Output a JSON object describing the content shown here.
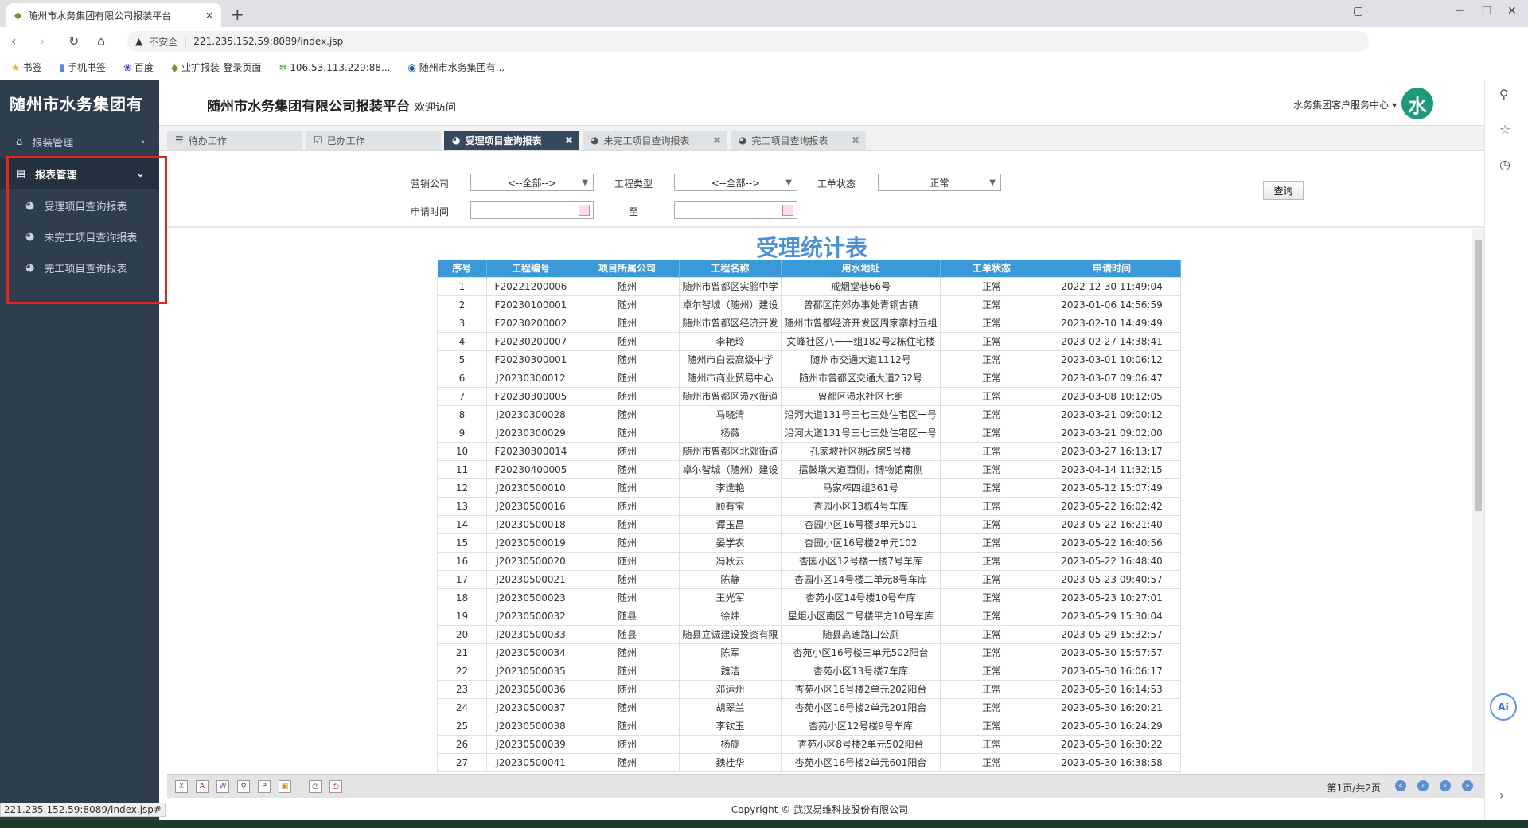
{
  "browser": {
    "tab_title": "随州市水务集团有限公司报装平台",
    "insecure_label": "不安全",
    "url": "221.235.152.59:8089/index.jsp",
    "bookmarks": [
      "书签",
      "手机书签",
      "百度",
      "业扩报装-登录页面",
      "106.53.113.229:88...",
      "随州市水务集团有..."
    ],
    "status_url": "221.235.152.59:8089/index.jsp#"
  },
  "sidebar": {
    "title": "随州市水务集团有",
    "items": [
      {
        "label": "报装管理",
        "icon": "home-icon"
      },
      {
        "label": "报表管理",
        "icon": "document-icon",
        "expanded": true
      }
    ],
    "subitems": [
      "受理项目查询报表",
      "未完工项目查询报表",
      "完工项目查询报表"
    ],
    "highlight_color": "#e8231c"
  },
  "header": {
    "title": "随州市水务集团有限公司报装平台",
    "welcome": "欢迎访问",
    "user": "水务集团客户服务中心",
    "logo_char": "水",
    "logo_color": "#1c9a7a"
  },
  "tabs": [
    {
      "label": "待办工作",
      "icon": "list-icon"
    },
    {
      "label": "已办工作",
      "icon": "checkbox-icon"
    },
    {
      "label": "受理项目查询报表",
      "icon": "pie-icon",
      "active": true,
      "closable": true
    },
    {
      "label": "未完工项目查询报表",
      "icon": "pie-icon",
      "closable": true
    },
    {
      "label": "完工项目查询报表",
      "icon": "pie-icon",
      "closable": true
    }
  ],
  "filters": {
    "company_label": "营销公司",
    "company_value": "<--全部-->",
    "type_label": "工程类型",
    "type_value": "<--全部-->",
    "status_label": "工单状态",
    "status_value": "正常",
    "date_label": "申请时间",
    "date_from": "",
    "to_label": "至",
    "date_to": "",
    "query_button": "查询"
  },
  "report": {
    "title": "受理统计表",
    "header_color": "#3a9ad9",
    "columns": [
      "序号",
      "工程编号",
      "项目所属公司",
      "工程名称",
      "用水地址",
      "工单状态",
      "申请时间"
    ],
    "rows": [
      [
        "1",
        "F20221200006",
        "随州",
        "随州市曾都区实验中学",
        "戒烟堂巷66号",
        "正常",
        "2022-12-30  11:49:04"
      ],
      [
        "2",
        "F20230100001",
        "随州",
        "卓尔智城（随州）建设",
        "曾都区南郊办事处青铜古镇",
        "正常",
        "2023-01-06  14:56:59"
      ],
      [
        "3",
        "F20230200002",
        "随州",
        "随州市曾都区经济开发",
        "随州市曾都经济开发区周家寨村五组",
        "正常",
        "2023-02-10  14:49:49"
      ],
      [
        "4",
        "F20230200007",
        "随州",
        "李艳玲",
        "文峰社区八一一组182号2栋住宅楼",
        "正常",
        "2023-02-27  14:38:41"
      ],
      [
        "5",
        "F20230300001",
        "随州",
        "随州市白云高级中学",
        "随州市交通大道1112号",
        "正常",
        "2023-03-01  10:06:12"
      ],
      [
        "6",
        "J20230300012",
        "随州",
        "随州市商业贸易中心",
        "随州市曾都区交通大道252号",
        "正常",
        "2023-03-07  09:06:47"
      ],
      [
        "7",
        "F20230300005",
        "随州",
        "随州市曾都区涢水街道",
        "曾都区涢水社区七组",
        "正常",
        "2023-03-08  10:12:05"
      ],
      [
        "8",
        "J20230300028",
        "随州",
        "马晓清",
        "沿河大道131号三七三处住宅区一号",
        "正常",
        "2023-03-21  09:00:12"
      ],
      [
        "9",
        "J20230300029",
        "随州",
        "杨薇",
        "沿河大道131号三七三处住宅区一号",
        "正常",
        "2023-03-21  09:02:00"
      ],
      [
        "10",
        "F20230300014",
        "随州",
        "随州市曾都区北郊街道",
        "孔家坡社区棚改房5号楼",
        "正常",
        "2023-03-27  16:13:17"
      ],
      [
        "11",
        "F20230400005",
        "随州",
        "卓尔智城（随州）建设",
        "擂鼓墩大道西侧，博物馆南侧",
        "正常",
        "2023-04-14  11:32:15"
      ],
      [
        "12",
        "J20230500010",
        "随州",
        "李选艳",
        "马家榨四组361号",
        "正常",
        "2023-05-12  15:07:49"
      ],
      [
        "13",
        "J20230500016",
        "随州",
        "顾有宝",
        "杏园小区13栋4号车库",
        "正常",
        "2023-05-22  16:02:42"
      ],
      [
        "14",
        "J20230500018",
        "随州",
        "谭玉昌",
        "杏园小区16号楼3单元501",
        "正常",
        "2023-05-22  16:21:40"
      ],
      [
        "15",
        "J20230500019",
        "随州",
        "晏学农",
        "杏园小区16号楼2单元102",
        "正常",
        "2023-05-22  16:40:56"
      ],
      [
        "16",
        "J20230500020",
        "随州",
        "冯秋云",
        "杏园小区12号楼一楼7号车库",
        "正常",
        "2023-05-22  16:48:40"
      ],
      [
        "17",
        "J20230500021",
        "随州",
        "陈静",
        "杏园小区14号楼二单元8号车库",
        "正常",
        "2023-05-23  09:40:57"
      ],
      [
        "18",
        "J20230500023",
        "随州",
        "王光军",
        "杏苑小区14号楼10号车库",
        "正常",
        "2023-05-23  10:27:01"
      ],
      [
        "19",
        "J20230500032",
        "随县",
        "徐炜",
        "星炬小区南区二号楼平方10号车库",
        "正常",
        "2023-05-29  15:30:04"
      ],
      [
        "20",
        "J20230500033",
        "随县",
        "随县立诚建设投资有限",
        "随县高速路口公厕",
        "正常",
        "2023-05-29  15:32:57"
      ],
      [
        "21",
        "J20230500034",
        "随州",
        "陈军",
        "杏苑小区16号楼三单元502阳台",
        "正常",
        "2023-05-30  15:57:57"
      ],
      [
        "22",
        "J20230500035",
        "随州",
        "魏洁",
        "杏苑小区13号楼7车库",
        "正常",
        "2023-05-30  16:06:17"
      ],
      [
        "23",
        "J20230500036",
        "随州",
        "邓运州",
        "杏苑小区16号楼2单元202阳台",
        "正常",
        "2023-05-30  16:14:53"
      ],
      [
        "24",
        "J20230500037",
        "随州",
        "胡翠兰",
        "杏苑小区16号楼2单元201阳台",
        "正常",
        "2023-05-30  16:20:21"
      ],
      [
        "25",
        "J20230500038",
        "随州",
        "李钦玉",
        "杏苑小区12号楼9号车库",
        "正常",
        "2023-05-30  16:24:29"
      ],
      [
        "26",
        "J20230500039",
        "随州",
        "杨旋",
        "杏苑小区8号楼2单元502阳台",
        "正常",
        "2023-05-30  16:30:22"
      ],
      [
        "27",
        "J20230500041",
        "随州",
        "魏桂华",
        "杏苑小区16号楼2单元601阳台",
        "正常",
        "2023-05-30  16:38:58"
      ]
    ]
  },
  "toolbar": {
    "icons": [
      "export-excel-icon",
      "export-pdf-icon",
      "export-word-icon",
      "zoom-icon",
      "find-icon",
      "export-image-icon",
      "print-icon",
      "print-pdf-icon"
    ],
    "page_info": "第1页/共2页"
  },
  "footer": {
    "copyright": "Copyright © 武汉易维科技股份有限公司"
  }
}
